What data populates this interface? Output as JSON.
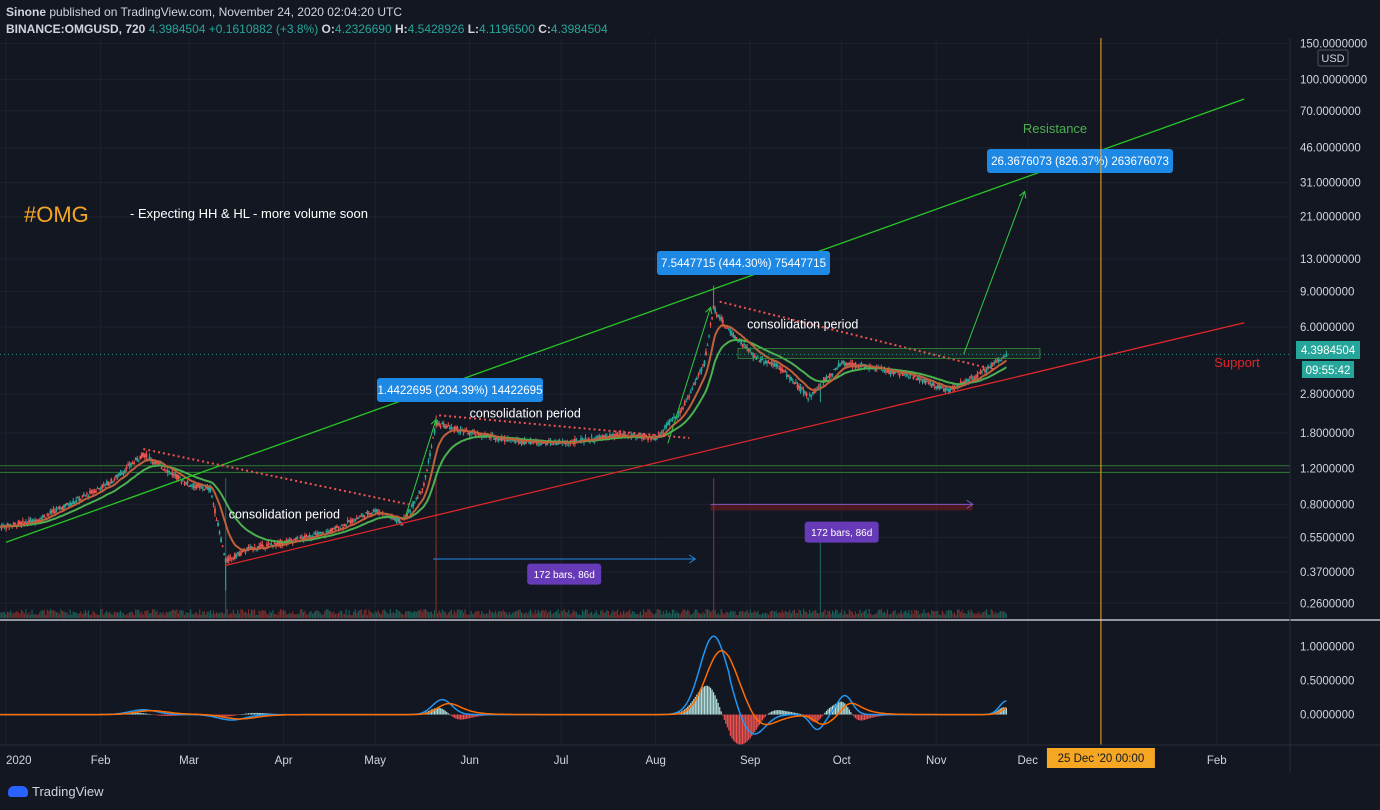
{
  "header": {
    "publisher": "Sinone",
    "published_line": " published on TradingView.com, November 24, 2020 02:04:20 UTC",
    "symbol": "BINANCE:OMGUSD, 720",
    "last": "4.3984504",
    "change": "+0.1610882 (+3.8%)",
    "o_label": "O:",
    "o_value": "4.2326690",
    "h_label": "H:",
    "h_value": "4.5428926",
    "l_label": "L:",
    "l_value": "4.1196500",
    "c_label": "C:",
    "c_value": "4.3984504"
  },
  "footer": {
    "brand": "TradingView"
  },
  "colors": {
    "background": "#131722",
    "up": "#26a69a",
    "down": "#ef5350",
    "ema_fast": "#c0603a",
    "ema_slow": "#4caf50",
    "resistance": "#26c726",
    "support": "#e0262b",
    "measure": "#1e88e5",
    "bars_badge": "#673ab7",
    "date_line": "#f5a623",
    "omg_tag": "#f5a623"
  },
  "chart_data": {
    "type": "candlestick",
    "scale": "log",
    "ylim": [
      0.22,
      160
    ],
    "currency": "USD",
    "y_ticks": [
      {
        "v": 150,
        "label": "150.0000000"
      },
      {
        "v": 100,
        "label": "100.0000000"
      },
      {
        "v": 70,
        "label": "70.0000000"
      },
      {
        "v": 46,
        "label": "46.0000000"
      },
      {
        "v": 31,
        "label": "31.0000000"
      },
      {
        "v": 21,
        "label": "21.0000000"
      },
      {
        "v": 13,
        "label": "13.0000000"
      },
      {
        "v": 9,
        "label": "9.0000000"
      },
      {
        "v": 6,
        "label": "6.0000000"
      },
      {
        "v": 2.8,
        "label": "2.8000000"
      },
      {
        "v": 1.8,
        "label": "1.8000000"
      },
      {
        "v": 1.2,
        "label": "1.2000000"
      },
      {
        "v": 0.8,
        "label": "0.8000000"
      },
      {
        "v": 0.55,
        "label": "0.5500000"
      },
      {
        "v": 0.37,
        "label": "0.3700000"
      },
      {
        "v": 0.26,
        "label": "0.2600000"
      }
    ],
    "x_ticks": [
      {
        "date": "2020-01-01",
        "label": "2020"
      },
      {
        "date": "2020-02-01",
        "label": "Feb"
      },
      {
        "date": "2020-03-01",
        "label": "Mar"
      },
      {
        "date": "2020-04-01",
        "label": "Apr"
      },
      {
        "date": "2020-05-01",
        "label": "May"
      },
      {
        "date": "2020-06-01",
        "label": "Jun"
      },
      {
        "date": "2020-07-01",
        "label": "Jul"
      },
      {
        "date": "2020-08-01",
        "label": "Aug"
      },
      {
        "date": "2020-09-01",
        "label": "Sep"
      },
      {
        "date": "2020-10-01",
        "label": "Oct"
      },
      {
        "date": "2020-11-01",
        "label": "Nov"
      },
      {
        "date": "2020-12-01",
        "label": "Dec"
      },
      {
        "date": "2021-02-01",
        "label": "Feb"
      }
    ],
    "price_path": [
      [
        "2019-12-30",
        0.62
      ],
      [
        "2020-01-10",
        0.66
      ],
      [
        "2020-01-25",
        0.85
      ],
      [
        "2020-02-05",
        1.05
      ],
      [
        "2020-02-15",
        1.42
      ],
      [
        "2020-02-22",
        1.2
      ],
      [
        "2020-03-01",
        1.0
      ],
      [
        "2020-03-08",
        0.95
      ],
      [
        "2020-03-13",
        0.42
      ],
      [
        "2020-03-20",
        0.48
      ],
      [
        "2020-04-01",
        0.52
      ],
      [
        "2020-04-15",
        0.58
      ],
      [
        "2020-05-01",
        0.75
      ],
      [
        "2020-05-10",
        0.65
      ],
      [
        "2020-05-17",
        1.0
      ],
      [
        "2020-05-21",
        2.0
      ],
      [
        "2020-06-01",
        1.8
      ],
      [
        "2020-06-15",
        1.65
      ],
      [
        "2020-07-01",
        1.6
      ],
      [
        "2020-07-20",
        1.75
      ],
      [
        "2020-08-01",
        1.7
      ],
      [
        "2020-08-10",
        2.4
      ],
      [
        "2020-08-17",
        4.0
      ],
      [
        "2020-08-20",
        7.5
      ],
      [
        "2020-08-24",
        6.0
      ],
      [
        "2020-09-03",
        4.2
      ],
      [
        "2020-09-10",
        3.9
      ],
      [
        "2020-09-20",
        2.7
      ],
      [
        "2020-10-01",
        4.0
      ],
      [
        "2020-10-10",
        3.8
      ],
      [
        "2020-10-25",
        3.4
      ],
      [
        "2020-11-05",
        2.9
      ],
      [
        "2020-11-15",
        3.5
      ],
      [
        "2020-11-24",
        4.4
      ]
    ],
    "last_price": "4.3984504",
    "countdown": "09:55:42",
    "cursor_date_label": "25 Dec '20   00:00",
    "cursor_date": "2020-12-25",
    "resistance_line": {
      "label": "Resistance",
      "from": [
        "2020-01-01",
        0.52
      ],
      "to": [
        "2021-02-10",
        80
      ]
    },
    "support_line": {
      "label": "Support",
      "from": [
        "2020-03-13",
        0.4
      ],
      "to": [
        "2021-02-10",
        6.3
      ]
    },
    "measures": [
      {
        "label": "1.4422695 (204.39%) 14422695",
        "from": [
          "2020-05-11",
          0.7
        ],
        "to": [
          "2020-05-21",
          2.1
        ]
      },
      {
        "label": "7.5447715 (444.30%) 75447715",
        "from": [
          "2020-08-05",
          1.6
        ],
        "to": [
          "2020-08-19",
          7.5
        ]
      },
      {
        "label": "26.3676073 (826.37%) 263676073",
        "from": [
          "2020-11-10",
          4.4
        ],
        "to": [
          "2020-11-30",
          28
        ]
      }
    ],
    "bar_ranges": [
      {
        "label": "172 bars, 86d",
        "from": "2020-05-20",
        "to": "2020-08-14",
        "price": 0.43,
        "badge_price": 0.36
      },
      {
        "label": "172 bars, 86d",
        "from": "2020-08-19",
        "to": "2020-11-13",
        "price": 0.8,
        "badge_price": 0.58
      }
    ],
    "annotations": [
      {
        "text": "#OMG",
        "type": "title"
      },
      {
        "text": "- Expecting HH & HL - more volume soon",
        "type": "note"
      },
      {
        "text": "consolidation period",
        "date": "2020-03-14",
        "price": 0.68
      },
      {
        "text": "consolidation period",
        "date": "2020-06-01",
        "price": 2.15
      },
      {
        "text": "consolidation period",
        "date": "2020-08-31",
        "price": 5.9
      }
    ],
    "macd": {
      "y_ticks": [
        {
          "v": 1.0,
          "label": "1.0000000"
        },
        {
          "v": 0.5,
          "label": "0.5000000"
        },
        {
          "v": 0.0,
          "label": "0.0000000"
        }
      ],
      "ylim": [
        -0.3,
        1.3
      ]
    }
  }
}
